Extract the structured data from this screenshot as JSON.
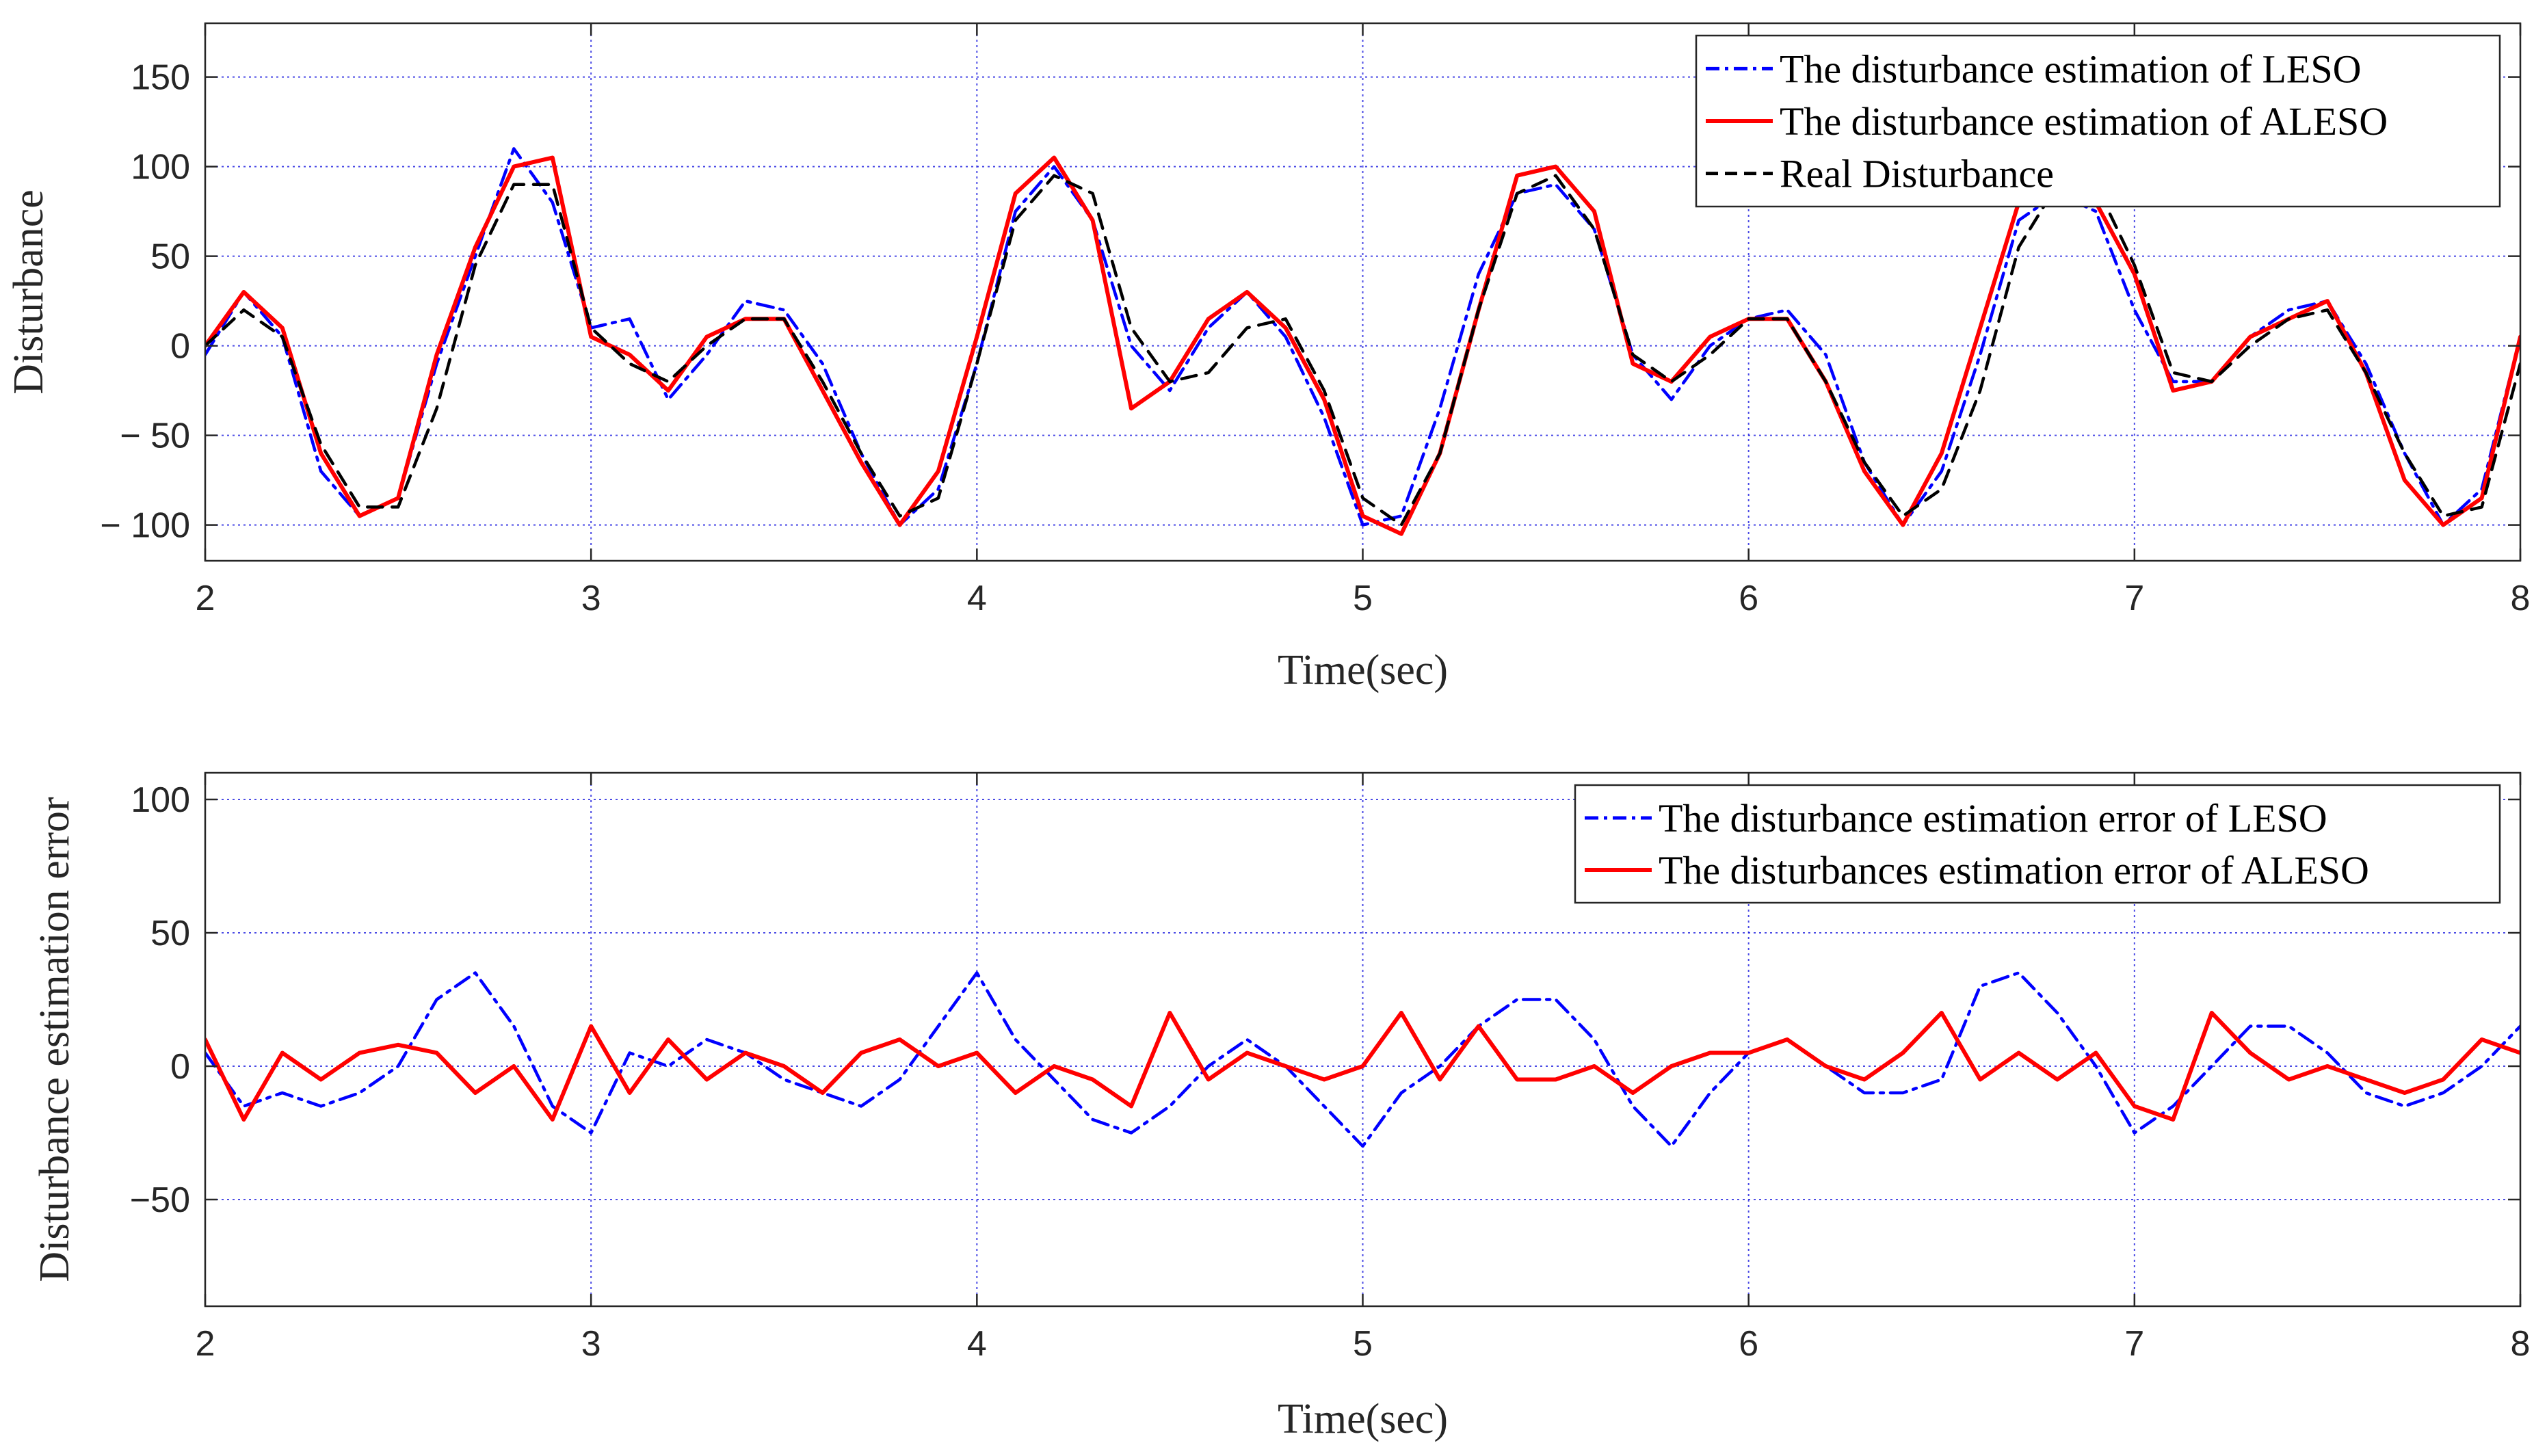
{
  "chart_data": [
    {
      "type": "line",
      "panel": "top",
      "title": "",
      "xlabel": "Time(sec)",
      "ylabel": "Disturbance",
      "xlim": [
        2,
        8
      ],
      "ylim": [
        -120,
        180
      ],
      "xticks": [
        2,
        3,
        4,
        5,
        6,
        7,
        8
      ],
      "xtick_labels": [
        "2",
        "3",
        "4",
        "5",
        "6",
        "7",
        "8"
      ],
      "yticks": [
        -100,
        -50,
        0,
        50,
        100,
        150
      ],
      "ytick_labels": [
        "− 100",
        "− 50",
        "0",
        "50",
        "100",
        "150"
      ],
      "grid": true,
      "legend_position": "top-right",
      "series": [
        {
          "name": "The disturbance estimation of LESO",
          "color": "#0000ff",
          "style": "dash-dot",
          "x": [
            2.0,
            2.1,
            2.2,
            2.3,
            2.4,
            2.5,
            2.6,
            2.7,
            2.8,
            2.9,
            3.0,
            3.1,
            3.2,
            3.3,
            3.4,
            3.5,
            3.6,
            3.7,
            3.8,
            3.9,
            4.0,
            4.1,
            4.2,
            4.3,
            4.4,
            4.5,
            4.6,
            4.7,
            4.8,
            4.9,
            5.0,
            5.1,
            5.2,
            5.3,
            5.4,
            5.5,
            5.6,
            5.7,
            5.8,
            5.9,
            6.0,
            6.1,
            6.2,
            6.3,
            6.4,
            6.5,
            6.6,
            6.7,
            6.8,
            6.9,
            7.0,
            7.1,
            7.2,
            7.3,
            7.4,
            7.5,
            7.6,
            7.7,
            7.8,
            7.9,
            8.0
          ],
          "values": [
            -5,
            30,
            5,
            -70,
            -95,
            -85,
            -10,
            50,
            110,
            80,
            10,
            15,
            -30,
            -5,
            25,
            20,
            -10,
            -60,
            -100,
            -80,
            -10,
            75,
            100,
            70,
            0,
            -25,
            10,
            30,
            5,
            -40,
            -100,
            -95,
            -35,
            40,
            85,
            90,
            65,
            -5,
            -30,
            0,
            15,
            20,
            -5,
            -65,
            -100,
            -70,
            -5,
            70,
            85,
            75,
            20,
            -20,
            -20,
            5,
            20,
            25,
            -10,
            -60,
            -100,
            -80,
            5
          ]
        },
        {
          "name": "The disturbance estimation of ALESO",
          "color": "#ff0000",
          "style": "solid",
          "x": [
            2.0,
            2.1,
            2.2,
            2.3,
            2.4,
            2.5,
            2.6,
            2.7,
            2.8,
            2.9,
            3.0,
            3.1,
            3.2,
            3.3,
            3.4,
            3.5,
            3.6,
            3.7,
            3.8,
            3.9,
            4.0,
            4.1,
            4.2,
            4.3,
            4.4,
            4.5,
            4.6,
            4.7,
            4.8,
            4.9,
            5.0,
            5.1,
            5.2,
            5.3,
            5.4,
            5.5,
            5.6,
            5.7,
            5.8,
            5.9,
            6.0,
            6.1,
            6.2,
            6.3,
            6.4,
            6.5,
            6.6,
            6.7,
            6.8,
            6.9,
            7.0,
            7.1,
            7.2,
            7.3,
            7.4,
            7.5,
            7.6,
            7.7,
            7.8,
            7.9,
            8.0
          ],
          "values": [
            0,
            30,
            10,
            -60,
            -95,
            -85,
            -5,
            55,
            100,
            105,
            5,
            -5,
            -25,
            5,
            15,
            15,
            -25,
            -65,
            -100,
            -70,
            5,
            85,
            105,
            70,
            -35,
            -20,
            15,
            30,
            10,
            -30,
            -95,
            -105,
            -60,
            20,
            95,
            100,
            75,
            -10,
            -20,
            5,
            15,
            15,
            -20,
            -70,
            -100,
            -60,
            10,
            80,
            90,
            80,
            40,
            -25,
            -20,
            5,
            15,
            25,
            -15,
            -75,
            -100,
            -85,
            5
          ]
        },
        {
          "name": "Real Disturbance",
          "color": "#000000",
          "style": "dashed",
          "x": [
            2.0,
            2.1,
            2.2,
            2.3,
            2.4,
            2.5,
            2.6,
            2.7,
            2.8,
            2.9,
            3.0,
            3.1,
            3.2,
            3.3,
            3.4,
            3.5,
            3.6,
            3.7,
            3.8,
            3.9,
            4.0,
            4.1,
            4.2,
            4.3,
            4.4,
            4.5,
            4.6,
            4.7,
            4.8,
            4.9,
            5.0,
            5.1,
            5.2,
            5.3,
            5.4,
            5.5,
            5.6,
            5.7,
            5.8,
            5.9,
            6.0,
            6.1,
            6.2,
            6.3,
            6.4,
            6.5,
            6.6,
            6.7,
            6.8,
            6.9,
            7.0,
            7.1,
            7.2,
            7.3,
            7.4,
            7.5,
            7.6,
            7.7,
            7.8,
            7.9,
            8.0
          ],
          "values": [
            0,
            20,
            5,
            -55,
            -90,
            -90,
            -35,
            45,
            90,
            90,
            10,
            -10,
            -20,
            0,
            15,
            15,
            -20,
            -60,
            -95,
            -85,
            -10,
            70,
            95,
            85,
            10,
            -20,
            -15,
            10,
            15,
            -25,
            -85,
            -100,
            -60,
            20,
            85,
            95,
            65,
            -5,
            -20,
            -5,
            15,
            15,
            -20,
            -65,
            -95,
            -80,
            -25,
            55,
            90,
            90,
            45,
            -15,
            -20,
            0,
            15,
            20,
            -15,
            -60,
            -95,
            -90,
            -10
          ]
        }
      ]
    },
    {
      "type": "line",
      "panel": "bottom",
      "title": "",
      "xlabel": "Time(sec)",
      "ylabel": "Disturbance estimation error",
      "xlim": [
        2,
        8
      ],
      "ylim": [
        -90,
        110
      ],
      "xticks": [
        2,
        3,
        4,
        5,
        6,
        7,
        8
      ],
      "xtick_labels": [
        "2",
        "3",
        "4",
        "5",
        "6",
        "7",
        "8"
      ],
      "yticks": [
        -50,
        0,
        50,
        100
      ],
      "ytick_labels": [
        "−50",
        "0",
        "50",
        "100"
      ],
      "grid": true,
      "legend_position": "top-right",
      "series": [
        {
          "name": "The disturbance estimation error of LESO",
          "color": "#0000ff",
          "style": "dash-dot",
          "x": [
            2.0,
            2.1,
            2.2,
            2.3,
            2.4,
            2.5,
            2.6,
            2.7,
            2.8,
            2.9,
            3.0,
            3.1,
            3.2,
            3.3,
            3.4,
            3.5,
            3.6,
            3.7,
            3.8,
            3.9,
            4.0,
            4.1,
            4.2,
            4.3,
            4.4,
            4.5,
            4.6,
            4.7,
            4.8,
            4.9,
            5.0,
            5.1,
            5.2,
            5.3,
            5.4,
            5.5,
            5.6,
            5.7,
            5.8,
            5.9,
            6.0,
            6.1,
            6.2,
            6.3,
            6.4,
            6.5,
            6.6,
            6.7,
            6.8,
            6.9,
            7.0,
            7.1,
            7.2,
            7.3,
            7.4,
            7.5,
            7.6,
            7.7,
            7.8,
            7.9,
            8.0
          ],
          "values": [
            5,
            -15,
            -10,
            -15,
            -10,
            0,
            25,
            35,
            15,
            -15,
            -25,
            5,
            0,
            10,
            5,
            -5,
            -10,
            -15,
            -5,
            15,
            35,
            10,
            -5,
            -20,
            -25,
            -15,
            0,
            10,
            0,
            -15,
            -30,
            -10,
            0,
            15,
            25,
            25,
            10,
            -15,
            -30,
            -10,
            5,
            10,
            0,
            -10,
            -10,
            -5,
            30,
            35,
            20,
            0,
            -25,
            -15,
            0,
            15,
            15,
            5,
            -10,
            -15,
            -10,
            0,
            15
          ]
        },
        {
          "name": "The disturbances estimation error of ALESO",
          "color": "#ff0000",
          "style": "solid",
          "x": [
            2.0,
            2.1,
            2.2,
            2.3,
            2.4,
            2.5,
            2.6,
            2.7,
            2.8,
            2.9,
            3.0,
            3.1,
            3.2,
            3.3,
            3.4,
            3.5,
            3.6,
            3.7,
            3.8,
            3.9,
            4.0,
            4.1,
            4.2,
            4.3,
            4.4,
            4.5,
            4.6,
            4.7,
            4.8,
            4.9,
            5.0,
            5.1,
            5.2,
            5.3,
            5.4,
            5.5,
            5.6,
            5.7,
            5.8,
            5.9,
            6.0,
            6.1,
            6.2,
            6.3,
            6.4,
            6.5,
            6.6,
            6.7,
            6.8,
            6.9,
            7.0,
            7.1,
            7.2,
            7.3,
            7.4,
            7.5,
            7.6,
            7.7,
            7.8,
            7.9,
            8.0
          ],
          "values": [
            10,
            -20,
            5,
            -5,
            5,
            8,
            5,
            -10,
            0,
            -20,
            15,
            -10,
            10,
            -5,
            5,
            0,
            -10,
            5,
            10,
            0,
            5,
            -10,
            0,
            -5,
            -15,
            20,
            -5,
            5,
            0,
            -5,
            0,
            20,
            -5,
            15,
            -5,
            -5,
            0,
            -10,
            0,
            5,
            5,
            10,
            0,
            -5,
            5,
            20,
            -5,
            5,
            -5,
            5,
            -15,
            -20,
            20,
            5,
            -5,
            0,
            -5,
            -10,
            -5,
            10,
            5
          ]
        }
      ]
    }
  ]
}
